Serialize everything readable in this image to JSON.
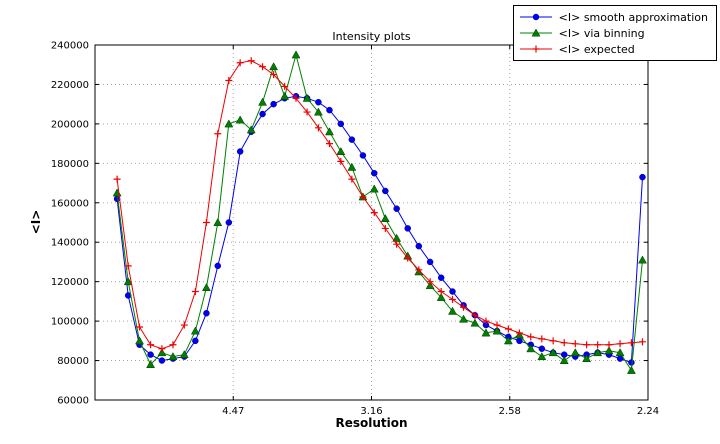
{
  "chart_data": {
    "type": "line",
    "title": "Intensity plots",
    "xlabel": "Resolution",
    "ylabel": "<I>",
    "xlim": [
      0,
      0.2
    ],
    "ylim": [
      60000,
      240000
    ],
    "grid": true,
    "legend_position": "upper right",
    "xtick_values": [
      0.05,
      0.1,
      0.15,
      0.2
    ],
    "xtick_labels": [
      "4.47",
      "3.16",
      "2.58",
      "2.24"
    ],
    "ytick_values": [
      60000,
      80000,
      100000,
      120000,
      140000,
      160000,
      180000,
      200000,
      220000,
      240000
    ],
    "ytick_labels": [
      "60000",
      "80000",
      "100000",
      "120000",
      "140000",
      "160000",
      "180000",
      "200000",
      "220000",
      "240000"
    ],
    "x": [
      0.008,
      0.012,
      0.0161,
      0.0201,
      0.0242,
      0.0282,
      0.0323,
      0.0363,
      0.0403,
      0.0444,
      0.0484,
      0.0525,
      0.0565,
      0.0606,
      0.0646,
      0.0686,
      0.0727,
      0.0767,
      0.0808,
      0.0848,
      0.0889,
      0.0929,
      0.0969,
      0.101,
      0.105,
      0.1091,
      0.1131,
      0.1171,
      0.1212,
      0.1252,
      0.1293,
      0.1333,
      0.1374,
      0.1414,
      0.1454,
      0.1495,
      0.1535,
      0.1576,
      0.1616,
      0.1657,
      0.1697,
      0.1737,
      0.1778,
      0.1818,
      0.1859,
      0.1899,
      0.194,
      0.198
    ],
    "series": [
      {
        "id": "smooth",
        "name": "<I> smooth approximation",
        "color": "#0000ee",
        "marker": "circle",
        "values": [
          162000,
          113000,
          88000,
          83000,
          80000,
          81000,
          82000,
          90000,
          104000,
          128000,
          150000,
          186000,
          196000,
          205000,
          210000,
          213000,
          214000,
          213000,
          211000,
          207000,
          200000,
          192000,
          184000,
          175000,
          166000,
          157000,
          147000,
          138000,
          130000,
          122000,
          115000,
          108000,
          103000,
          98000,
          95000,
          92000,
          90000,
          88000,
          86000,
          84000,
          83000,
          82000,
          83000,
          84000,
          83000,
          81000,
          79000,
          173000
        ]
      },
      {
        "id": "binning",
        "name": "<I> via binning",
        "color": "#008000",
        "marker": "triangle",
        "values": [
          165000,
          120000,
          90000,
          78000,
          84000,
          82000,
          83000,
          95000,
          117000,
          150000,
          200000,
          202000,
          197000,
          211000,
          229000,
          214000,
          235000,
          213000,
          206000,
          196000,
          186000,
          178000,
          163000,
          167000,
          152000,
          142000,
          133000,
          125000,
          118000,
          112000,
          105000,
          101000,
          99000,
          94000,
          95000,
          90000,
          93000,
          86000,
          82000,
          84000,
          80000,
          84000,
          81000,
          84000,
          85000,
          84000,
          75000,
          131000
        ]
      },
      {
        "id": "expected",
        "name": "<I> expected",
        "color": "#ee0000",
        "marker": "plus",
        "values": [
          172000,
          128000,
          97000,
          88000,
          86000,
          88000,
          98000,
          115000,
          150000,
          195000,
          222000,
          231000,
          232000,
          229000,
          225000,
          219000,
          213000,
          206000,
          198000,
          190000,
          181000,
          172000,
          163000,
          155000,
          147000,
          139000,
          132000,
          126000,
          120000,
          115000,
          111000,
          107000,
          103000,
          100000,
          98000,
          96000,
          94000,
          92000,
          91000,
          90000,
          89000,
          88500,
          88000,
          88000,
          88000,
          88500,
          89000,
          89500
        ]
      }
    ]
  }
}
